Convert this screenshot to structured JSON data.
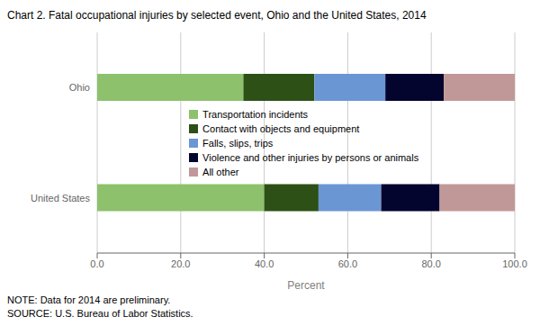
{
  "chart_data": {
    "type": "bar",
    "orientation": "horizontal",
    "stacked": true,
    "title": "Chart 2. Fatal occupational injuries by selected event, Ohio and the United States, 2014",
    "categories": [
      "United States",
      "Ohio"
    ],
    "series": [
      {
        "name": "Transportation incidents",
        "color": "#8dc16c",
        "values": [
          40.0,
          35.0
        ]
      },
      {
        "name": "Contact with objects and equipment",
        "color": "#2d5016",
        "values": [
          13.0,
          17.0
        ]
      },
      {
        "name": "Falls, slips, trips",
        "color": "#6b96d4",
        "values": [
          15.0,
          17.0
        ]
      },
      {
        "name": "Violence and other injuries by persons or animals",
        "color": "#04052e",
        "values": [
          14.0,
          14.0
        ]
      },
      {
        "name": "All other",
        "color": "#c19898",
        "values": [
          18.0,
          17.0
        ]
      }
    ],
    "xlabel": "Percent",
    "xlim": [
      0,
      100
    ],
    "xticks": [
      {
        "value": 0,
        "label": "0.0"
      },
      {
        "value": 20,
        "label": "20.0"
      },
      {
        "value": 40,
        "label": "40.0"
      },
      {
        "value": 60,
        "label": "60.0"
      },
      {
        "value": 80,
        "label": "80.0"
      },
      {
        "value": 100,
        "label": "100.0"
      }
    ],
    "grid": true,
    "legend": "center",
    "annotations": [
      "NOTE: Data for 2014 are preliminary.",
      "SOURCE: U.S. Bureau of Labor Statistics."
    ]
  }
}
